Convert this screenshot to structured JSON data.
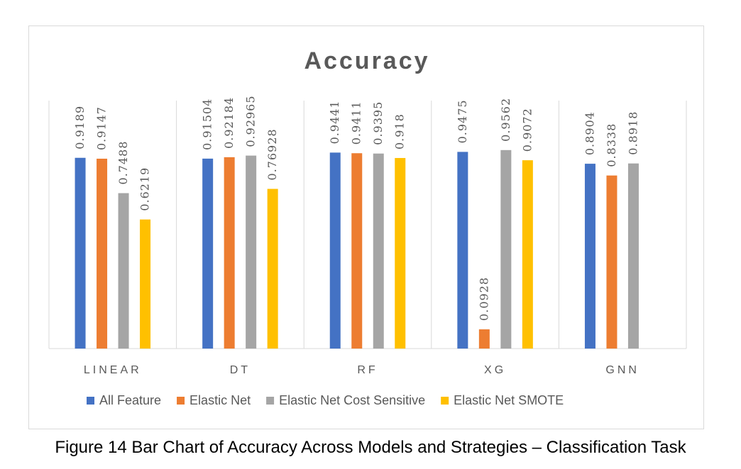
{
  "chart_data": {
    "type": "bar",
    "title": "Accuracy",
    "categories": [
      "LINEAR",
      "DT",
      "RF",
      "XG",
      "GNN"
    ],
    "ylim": [
      0,
      1.0
    ],
    "grid": false,
    "category_separators": true,
    "legend_position": "bottom",
    "series": [
      {
        "name": "All Feature",
        "color": "#4472c4",
        "values": [
          0.9189,
          0.91504,
          0.9441,
          0.9475,
          0.8904
        ],
        "labels": [
          "0.9189",
          "0.91504",
          "0.9441",
          "0.9475",
          "0.8904"
        ]
      },
      {
        "name": "Elastic Net",
        "color": "#ed7d31",
        "values": [
          0.9147,
          0.92184,
          0.9411,
          0.0928,
          0.8338
        ],
        "labels": [
          "0.9147",
          "0.92184",
          "0.9411",
          "0.0928",
          "0.8338"
        ]
      },
      {
        "name": "Elastic Net Cost Sensitive",
        "color": "#a5a5a5",
        "values": [
          0.7488,
          0.92965,
          0.9395,
          0.9562,
          0.8918
        ],
        "labels": [
          "0.7488",
          "0.92965",
          "0.9395",
          "0.9562",
          "0.8918"
        ]
      },
      {
        "name": "Elastic Net SMOTE",
        "color": "#ffc000",
        "values": [
          0.6219,
          0.76928,
          0.918,
          0.9072,
          null
        ],
        "labels": [
          "0.6219",
          "0.76928",
          "0.918",
          "0.9072",
          null
        ]
      }
    ]
  },
  "caption": "Figure 14 Bar Chart of Accuracy Across Models and Strategies – Classification Task"
}
